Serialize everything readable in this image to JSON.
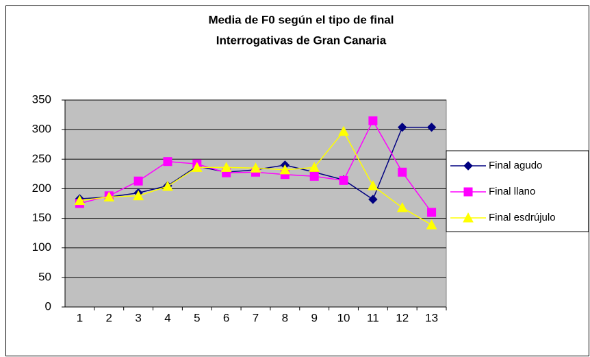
{
  "chart_data": {
    "type": "line",
    "title": "Media de F0 según el tipo de final",
    "subtitle": "Interrogativas de Gran Canaria",
    "categories": [
      "1",
      "2",
      "3",
      "4",
      "5",
      "6",
      "7",
      "8",
      "9",
      "10",
      "11",
      "12",
      "13"
    ],
    "series": [
      {
        "name": "Final agudo",
        "color": "#000080",
        "marker": "diamond",
        "values": [
          183,
          186,
          193,
          205,
          238,
          228,
          232,
          240,
          228,
          215,
          182,
          304,
          304
        ]
      },
      {
        "name": "Final llano",
        "color": "#ff00ff",
        "marker": "square",
        "values": [
          175,
          188,
          213,
          246,
          242,
          227,
          228,
          224,
          221,
          214,
          315,
          228,
          160
        ]
      },
      {
        "name": "Final esdrújulo",
        "color": "#ffff00",
        "marker": "triangle",
        "values": [
          180,
          186,
          188,
          204,
          236,
          236,
          235,
          232,
          236,
          297,
          205,
          168,
          139
        ]
      }
    ],
    "ylim": [
      0,
      350
    ],
    "yticks": [
      0,
      50,
      100,
      150,
      200,
      250,
      300,
      350
    ],
    "grid": true,
    "plot_background": "#c0c0c0",
    "legend": "right"
  }
}
